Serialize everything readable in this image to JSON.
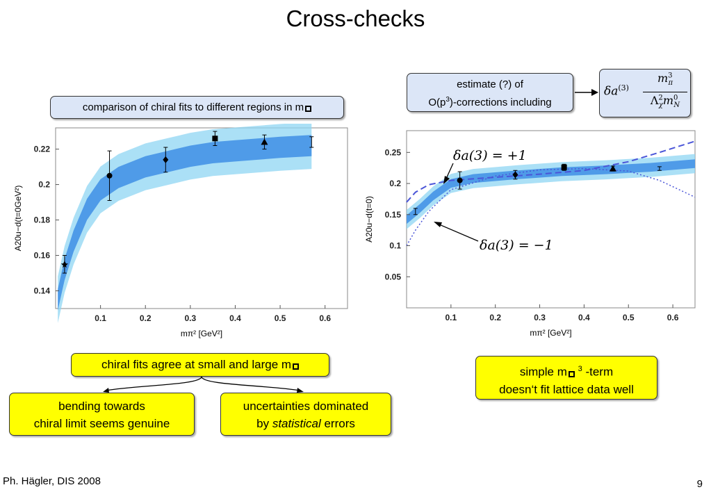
{
  "slide": {
    "title": "Cross-checks",
    "footer_left": "Ph. Hägler, DIS 2008",
    "page_number": "9"
  },
  "callouts": {
    "comparison": "comparison of chiral fits to different regions in m",
    "estimate_line1": "estimate (?) of",
    "estimate_line2_pre": "O(p",
    "estimate_line2_sup": "3",
    "estimate_line2_post": ")-corrections including",
    "formula_prefix": "δa",
    "formula_sup": "(3)",
    "formula_num": "m",
    "formula_num_sup": "3",
    "formula_num_sub": "π",
    "formula_den": "Λ",
    "formula_den_sup": "2",
    "formula_den_sub": "χ",
    "formula_den_m": "m",
    "formula_den_m_sup": "0",
    "formula_den_m_sub": "N",
    "chiral_agree": "chiral fits agree at small and large m",
    "bending_line1": "bending towards",
    "bending_line2": "chiral limit seems genuine",
    "uncert_line1": "uncertainties dominated",
    "uncert_line2_pre": "by ",
    "uncert_line2_em": "statistical",
    "uncert_line2_post": " errors",
    "simple_line1_pre": "simple m",
    "simple_line1_sup": "3",
    "simple_line1_post": "-term",
    "simple_line2": "doesn‘t fit lattice data well"
  },
  "annotations": {
    "plus": "δa(3) = +1",
    "minus": "δa(3) = −1"
  },
  "colors": {
    "band_dark": "#4f9be8",
    "band_light": "#8fd6f3",
    "callout_blue": "#dce6f7",
    "callout_yellow": "#ffff00",
    "dashed": "#4a55d8"
  },
  "chart_data": [
    {
      "type": "scatter",
      "title": "",
      "xlabel": "mπ² [GeV²]",
      "ylabel": "A20u−d(t=0GeV²)",
      "xlim": [
        0,
        0.65
      ],
      "ylim": [
        0.13,
        0.232
      ],
      "xticks": [
        "0.1",
        "0.2",
        "0.3",
        "0.4",
        "0.5",
        "0.6"
      ],
      "yticks": [
        "0.14",
        "0.16",
        "0.18",
        "0.2",
        "0.22"
      ],
      "points": [
        {
          "x": 0.02,
          "y": 0.155,
          "err": 0.005,
          "marker": "star"
        },
        {
          "x": 0.12,
          "y": 0.205,
          "err": 0.014,
          "marker": "circle"
        },
        {
          "x": 0.245,
          "y": 0.214,
          "err": 0.007,
          "marker": "diamond"
        },
        {
          "x": 0.355,
          "y": 0.226,
          "err": 0.004,
          "marker": "square"
        },
        {
          "x": 0.465,
          "y": 0.224,
          "err": 0.004,
          "marker": "triangle"
        },
        {
          "x": 0.57,
          "y": 0.224,
          "err": 0.003,
          "marker": "none"
        }
      ],
      "band_central": [
        [
          0.005,
          0.135
        ],
        [
          0.02,
          0.152
        ],
        [
          0.04,
          0.168
        ],
        [
          0.07,
          0.186
        ],
        [
          0.1,
          0.197
        ],
        [
          0.14,
          0.204
        ],
        [
          0.2,
          0.21
        ],
        [
          0.25,
          0.213
        ],
        [
          0.3,
          0.216
        ],
        [
          0.35,
          0.218
        ],
        [
          0.4,
          0.219
        ],
        [
          0.5,
          0.221
        ],
        [
          0.57,
          0.222
        ]
      ],
      "band_width": 0.006
    },
    {
      "type": "scatter",
      "title": "",
      "xlabel": "mπ² [GeV²]",
      "ylabel": "A20u−d(t=0)",
      "xlim": [
        0,
        0.65
      ],
      "ylim": [
        0.0,
        0.285
      ],
      "xticks": [
        "0.1",
        "0.2",
        "0.3",
        "0.4",
        "0.5",
        "0.6"
      ],
      "yticks": [
        "0.05",
        "0.1",
        "0.15",
        "0.2",
        "0.25"
      ],
      "points": [
        {
          "x": 0.02,
          "y": 0.155,
          "err": 0.005,
          "marker": "none"
        },
        {
          "x": 0.12,
          "y": 0.205,
          "err": 0.014,
          "marker": "circle"
        },
        {
          "x": 0.245,
          "y": 0.214,
          "err": 0.007,
          "marker": "diamond"
        },
        {
          "x": 0.355,
          "y": 0.226,
          "err": 0.005,
          "marker": "square"
        },
        {
          "x": 0.465,
          "y": 0.224,
          "err": 0.004,
          "marker": "triangle"
        },
        {
          "x": 0.57,
          "y": 0.224,
          "err": 0.003,
          "marker": "none"
        }
      ],
      "band_central": [
        [
          0.0,
          0.142
        ],
        [
          0.03,
          0.16
        ],
        [
          0.06,
          0.18
        ],
        [
          0.1,
          0.2
        ],
        [
          0.15,
          0.208
        ],
        [
          0.25,
          0.214
        ],
        [
          0.35,
          0.219
        ],
        [
          0.45,
          0.222
        ],
        [
          0.55,
          0.226
        ],
        [
          0.65,
          0.232
        ]
      ],
      "band_width": 0.007,
      "dashed_plus": [
        [
          0.0,
          0.17
        ],
        [
          0.02,
          0.186
        ],
        [
          0.05,
          0.198
        ],
        [
          0.1,
          0.205
        ],
        [
          0.2,
          0.21
        ],
        [
          0.3,
          0.215
        ],
        [
          0.4,
          0.221
        ],
        [
          0.5,
          0.235
        ],
        [
          0.57,
          0.25
        ],
        [
          0.65,
          0.268
        ]
      ],
      "dotted_minus": [
        [
          0.0,
          0.1
        ],
        [
          0.02,
          0.125
        ],
        [
          0.05,
          0.155
        ],
        [
          0.1,
          0.19
        ],
        [
          0.2,
          0.212
        ],
        [
          0.3,
          0.222
        ],
        [
          0.4,
          0.224
        ],
        [
          0.5,
          0.22
        ],
        [
          0.57,
          0.205
        ],
        [
          0.65,
          0.178
        ]
      ]
    }
  ]
}
